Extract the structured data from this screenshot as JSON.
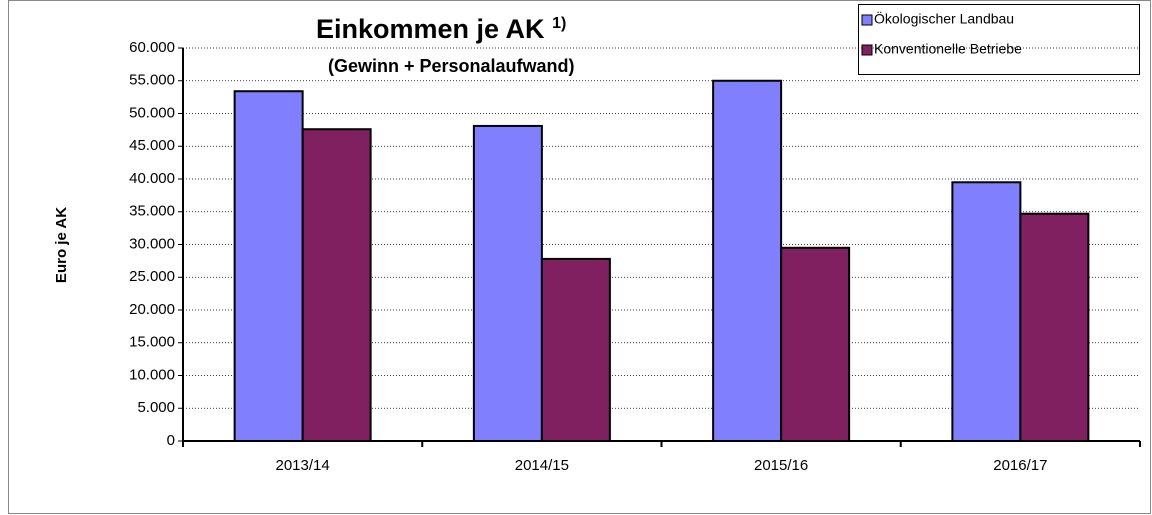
{
  "chart_data": {
    "type": "bar",
    "title": "Einkommen je AK",
    "title_note": "1)",
    "subtitle": "(Gewinn + Personalaufwand)",
    "y_label": "Euro je AK",
    "categories": [
      "2013/14",
      "2014/15",
      "2015/16",
      "2016/17"
    ],
    "series": [
      {
        "name": "Ökologischer Landbau",
        "color": "#8080ff",
        "values": [
          53400,
          48100,
          55000,
          39500
        ]
      },
      {
        "name": "Konventionelle Betriebe",
        "color": "#802060",
        "values": [
          47600,
          27800,
          29500,
          34700
        ]
      }
    ],
    "ylim": [
      0,
      60000
    ],
    "yticks": [
      0,
      {
        "value": 5000,
        "label": "5.000"
      },
      {
        "value": 10000,
        "label": "10.000"
      },
      {
        "value": 15000,
        "label": "15.000"
      },
      {
        "value": 20000,
        "label": "20.000"
      },
      {
        "value": 25000,
        "label": "25.000"
      },
      {
        "value": 30000,
        "label": "30.000"
      },
      {
        "value": 35000,
        "label": "35.000"
      },
      {
        "value": 40000,
        "label": "40.000"
      },
      {
        "value": 45000,
        "label": "45.000"
      },
      {
        "value": 50000,
        "label": "50.000"
      },
      {
        "value": 55000,
        "label": "55.000"
      },
      {
        "value": 60000,
        "label": "60.000"
      }
    ],
    "grid": true,
    "legend": "top-right"
  }
}
